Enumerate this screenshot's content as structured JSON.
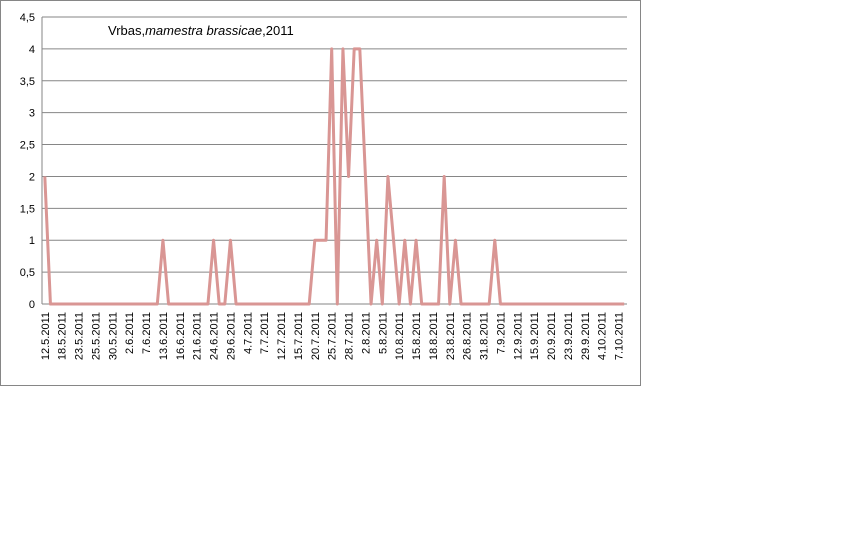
{
  "chart_data": {
    "type": "line",
    "title_parts": [
      "Vrbas,",
      "mamestra brassicae",
      ",2011"
    ],
    "categories": [
      "12.5.2011",
      null,
      null,
      "18.5.2011",
      null,
      null,
      "23.5.2011",
      null,
      null,
      "25.5.2011",
      null,
      null,
      "30.5.2011",
      null,
      null,
      "2.6.2011",
      null,
      null,
      "7.6.2011",
      null,
      null,
      "13.6.2011",
      null,
      null,
      "16.6.2011",
      null,
      null,
      "21.6.2011",
      null,
      null,
      "24.6.2011",
      null,
      null,
      "29.6.2011",
      null,
      null,
      "4.7.2011",
      null,
      null,
      "7.7.2011",
      null,
      null,
      "12.7.2011",
      null,
      null,
      "15.7.2011",
      null,
      null,
      "20.7.2011",
      null,
      null,
      "25.7.2011",
      null,
      null,
      "28.7.2011",
      null,
      null,
      "2.8.2011",
      null,
      null,
      "5.8.2011",
      null,
      null,
      "10.8.2011",
      null,
      null,
      "15.8.2011",
      null,
      null,
      "18.8.2011",
      null,
      null,
      "23.8.2011",
      null,
      null,
      "26.8.2011",
      null,
      null,
      "31.8.2011",
      null,
      null,
      "7.9.2011",
      null,
      null,
      "12.9.2011",
      null,
      null,
      "15.9.2011",
      null,
      null,
      "20.9.2011",
      null,
      null,
      "23.9.2011",
      null,
      null,
      "29.9.2011",
      null,
      null,
      "4.10.2011",
      null,
      null,
      "7.10.2011",
      null
    ],
    "values": [
      2,
      0,
      0,
      0,
      0,
      0,
      0,
      0,
      0,
      0,
      0,
      0,
      0,
      0,
      0,
      0,
      0,
      0,
      0,
      0,
      0,
      1,
      0,
      0,
      0,
      0,
      0,
      0,
      0,
      0,
      1,
      0,
      0,
      1,
      0,
      0,
      0,
      0,
      0,
      0,
      0,
      0,
      0,
      0,
      0,
      0,
      0,
      0,
      1,
      1,
      1,
      4,
      0,
      4,
      2,
      4,
      4,
      2,
      0,
      1,
      0,
      2,
      1,
      0,
      1,
      0,
      1,
      0,
      0,
      0,
      0,
      2,
      0,
      1,
      0,
      0,
      0,
      0,
      0,
      0,
      1,
      0,
      0,
      0,
      0,
      0,
      0,
      0,
      0,
      0,
      0,
      0,
      0,
      0,
      0,
      0,
      0,
      0,
      0,
      0,
      0,
      0,
      0,
      0
    ],
    "color": "#d99694",
    "ylim": [
      0,
      4.5
    ],
    "yticks": [
      0,
      {
        "value": 0.5,
        "label": "0,5"
      },
      1,
      {
        "value": 1.5,
        "label": "1,5"
      },
      2,
      {
        "value": 2.5,
        "label": "2,5"
      },
      3,
      {
        "value": 3.5,
        "label": "3,5"
      },
      4,
      {
        "value": 4.5,
        "label": "4,5"
      }
    ],
    "grid": true
  }
}
